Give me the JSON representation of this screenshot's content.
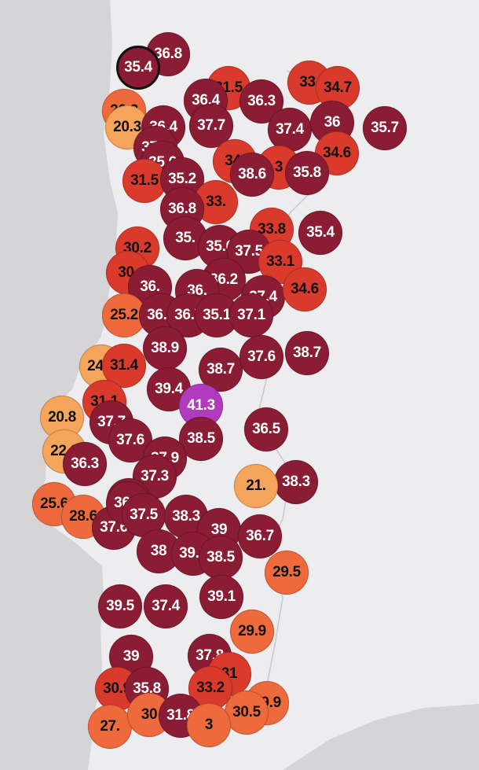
{
  "map": {
    "land_color": "#ededef",
    "sea_color": "#d5d5d8",
    "scale": {
      "colors": {
        "very_hot": "#8a1c34",
        "hot": "#d93a2b",
        "warm": "#ee6a3c",
        "mild": "#f5a45c",
        "extreme": "#b03bbd"
      }
    },
    "stations": [
      {
        "label": "36.8",
        "cat": "very_hot"
      },
      {
        "label": "35.4",
        "cat": "very_hot",
        "selected": true
      },
      {
        "label": "31.5",
        "cat": "hot"
      },
      {
        "label": "33.",
        "cat": "hot"
      },
      {
        "label": "34.7",
        "cat": "hot"
      },
      {
        "label": "36.4",
        "cat": "very_hot"
      },
      {
        "label": "36.3",
        "cat": "very_hot"
      },
      {
        "label": "26.3",
        "cat": "warm"
      },
      {
        "label": "20.3",
        "cat": "mild"
      },
      {
        "label": "36.4",
        "cat": "very_hot"
      },
      {
        "label": "37.7",
        "cat": "very_hot"
      },
      {
        "label": "37.4",
        "cat": "very_hot"
      },
      {
        "label": "36",
        "cat": "very_hot"
      },
      {
        "label": "35.7",
        "cat": "very_hot"
      },
      {
        "label": "37.8",
        "cat": "very_hot"
      },
      {
        "label": "35.6",
        "cat": "very_hot"
      },
      {
        "label": "34.",
        "cat": "hot"
      },
      {
        "label": "3",
        "cat": "hot"
      },
      {
        "label": "34.6",
        "cat": "hot"
      },
      {
        "label": "38.6",
        "cat": "very_hot"
      },
      {
        "label": "35.8",
        "cat": "very_hot"
      },
      {
        "label": "31.5",
        "cat": "hot"
      },
      {
        "label": "35.2",
        "cat": "very_hot"
      },
      {
        "label": "33.",
        "cat": "hot"
      },
      {
        "label": "36.8",
        "cat": "very_hot"
      },
      {
        "label": "33.8",
        "cat": "hot"
      },
      {
        "label": "35.4",
        "cat": "very_hot"
      },
      {
        "label": "30.2",
        "cat": "hot"
      },
      {
        "label": "35.",
        "cat": "very_hot"
      },
      {
        "label": "35.6",
        "cat": "very_hot"
      },
      {
        "label": "37.5",
        "cat": "very_hot"
      },
      {
        "label": "33.1",
        "cat": "hot"
      },
      {
        "label": "30.",
        "cat": "hot"
      },
      {
        "label": "36.",
        "cat": "very_hot"
      },
      {
        "label": "36.2",
        "cat": "very_hot"
      },
      {
        "label": "36.",
        "cat": "very_hot"
      },
      {
        "label": "37.4",
        "cat": "very_hot"
      },
      {
        "label": "34.6",
        "cat": "hot"
      },
      {
        "label": "25.2",
        "cat": "warm"
      },
      {
        "label": "36.8",
        "cat": "very_hot"
      },
      {
        "label": "36.7",
        "cat": "very_hot"
      },
      {
        "label": "35.1",
        "cat": "very_hot"
      },
      {
        "label": "37.1",
        "cat": "very_hot"
      },
      {
        "label": "38.9",
        "cat": "very_hot"
      },
      {
        "label": "38.7",
        "cat": "very_hot"
      },
      {
        "label": "37.6",
        "cat": "very_hot"
      },
      {
        "label": "38.7",
        "cat": "very_hot"
      },
      {
        "label": "24.5",
        "cat": "mild"
      },
      {
        "label": "31.4",
        "cat": "hot"
      },
      {
        "label": "39.4",
        "cat": "very_hot"
      },
      {
        "label": "41.3",
        "cat": "extreme"
      },
      {
        "label": "31.1",
        "cat": "hot"
      },
      {
        "label": "20.8",
        "cat": "mild"
      },
      {
        "label": "37.7",
        "cat": "very_hot"
      },
      {
        "label": "37.6",
        "cat": "very_hot"
      },
      {
        "label": "38.5",
        "cat": "very_hot"
      },
      {
        "label": "36.5",
        "cat": "very_hot"
      },
      {
        "label": "22.8",
        "cat": "mild"
      },
      {
        "label": "36.3",
        "cat": "very_hot"
      },
      {
        "label": "37.9",
        "cat": "very_hot"
      },
      {
        "label": "37.3",
        "cat": "very_hot"
      },
      {
        "label": "37.6",
        "cat": "very_hot"
      },
      {
        "label": "38.3",
        "cat": "very_hot"
      },
      {
        "label": "21.",
        "cat": "mild"
      },
      {
        "label": "25.6",
        "cat": "warm"
      },
      {
        "label": "28.6",
        "cat": "warm"
      },
      {
        "label": "37.6",
        "cat": "very_hot"
      },
      {
        "label": "36.2",
        "cat": "very_hot"
      },
      {
        "label": "37.5",
        "cat": "very_hot"
      },
      {
        "label": "38.3",
        "cat": "very_hot"
      },
      {
        "label": "39",
        "cat": "very_hot"
      },
      {
        "label": "36.7",
        "cat": "very_hot"
      },
      {
        "label": "38",
        "cat": "very_hot"
      },
      {
        "label": "39.1",
        "cat": "very_hot"
      },
      {
        "label": "38.5",
        "cat": "very_hot"
      },
      {
        "label": "29.5",
        "cat": "warm"
      },
      {
        "label": "39.5",
        "cat": "very_hot"
      },
      {
        "label": "37.4",
        "cat": "very_hot"
      },
      {
        "label": "39.1",
        "cat": "very_hot"
      },
      {
        "label": "29.9",
        "cat": "warm"
      },
      {
        "label": "39",
        "cat": "very_hot"
      },
      {
        "label": "37.8",
        "cat": "very_hot"
      },
      {
        "label": "31",
        "cat": "hot"
      },
      {
        "label": "30.9",
        "cat": "hot"
      },
      {
        "label": "35.8",
        "cat": "very_hot"
      },
      {
        "label": "33.2",
        "cat": "hot"
      },
      {
        "label": "29.9",
        "cat": "warm"
      },
      {
        "label": "30.5",
        "cat": "warm"
      },
      {
        "label": "27.",
        "cat": "warm"
      },
      {
        "label": "30",
        "cat": "warm"
      },
      {
        "label": "31.8",
        "cat": "very_hot"
      },
      {
        "label": "3",
        "cat": "warm"
      }
    ]
  }
}
